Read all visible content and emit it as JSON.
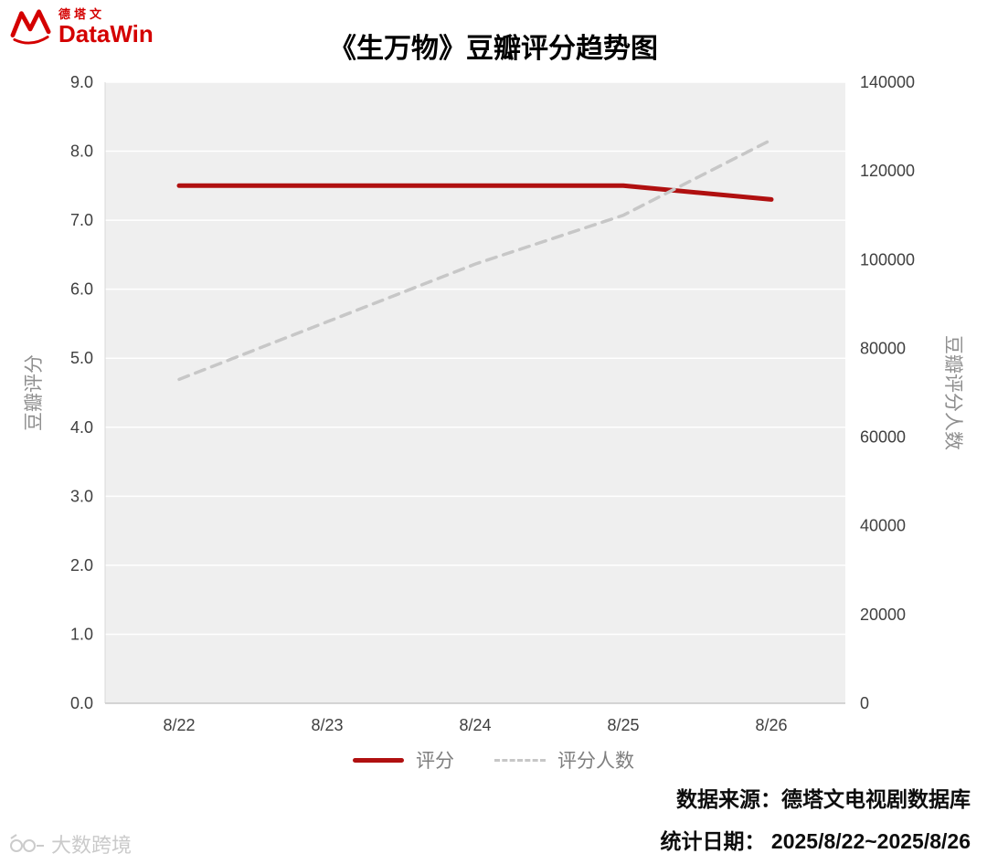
{
  "header": {
    "brand_cn": "德塔文",
    "brand_en": "DataWin",
    "title": "《生万物》豆瓣评分趋势图"
  },
  "chart_data": {
    "type": "line",
    "title": "《生万物》豆瓣评分趋势图",
    "categories": [
      "8/22",
      "8/23",
      "8/24",
      "8/25",
      "8/26"
    ],
    "series": [
      {
        "name": "评分",
        "axis": "left",
        "style": "solid",
        "color": "#b01010",
        "values": [
          7.5,
          7.5,
          7.5,
          7.5,
          7.3
        ]
      },
      {
        "name": "评分人数",
        "axis": "right",
        "style": "dashed",
        "color": "#c7c7c7",
        "values": [
          73000,
          86000,
          99000,
          110000,
          127000
        ]
      }
    ],
    "left_axis": {
      "label": "豆瓣评分",
      "min": 0,
      "max": 9
    },
    "right_axis": {
      "label": "豆瓣评分人数",
      "min": 0,
      "max": 140000
    },
    "left_ticks": [
      "0.0",
      "1.0",
      "2.0",
      "3.0",
      "4.0",
      "5.0",
      "6.0",
      "7.0",
      "8.0",
      "9.0"
    ],
    "right_ticks": [
      "0",
      "20000",
      "40000",
      "60000",
      "80000",
      "100000",
      "120000",
      "140000"
    ],
    "legend_position": "bottom",
    "grid": true,
    "plot_bg": "#efefef",
    "tick_color": "#3f3f3f"
  },
  "footer": {
    "source": "数据来源：德塔文电视剧数据库",
    "date_range": "统计日期：  2025/8/22~2025/8/26"
  },
  "watermark": {
    "text": "大数跨境"
  }
}
